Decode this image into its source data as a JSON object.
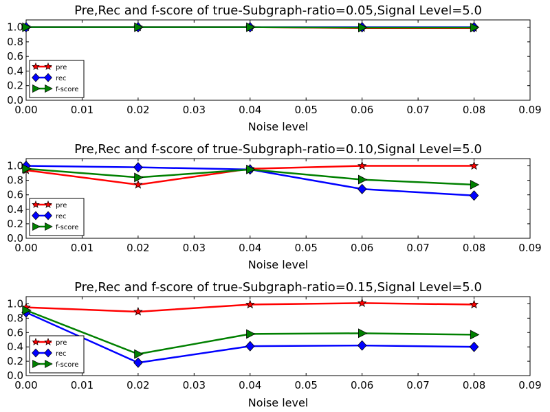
{
  "chart_data": [
    {
      "type": "line",
      "title": "Pre,Rec and f-score of true-Subgraph-ratio=0.05,Signal Level=5.0",
      "xlabel": "Noise level",
      "ylabel": "",
      "xlim": [
        0,
        0.09
      ],
      "ylim": [
        0,
        1.1
      ],
      "xticks": [
        "0.00",
        "0.01",
        "0.02",
        "0.03",
        "0.04",
        "0.05",
        "0.06",
        "0.07",
        "0.08",
        "0.09"
      ],
      "yticks": [
        "0.0",
        "0.2",
        "0.4",
        "0.6",
        "0.8",
        "1.0"
      ],
      "legend": "lower-left",
      "x": [
        0.0,
        0.02,
        0.04,
        0.06,
        0.08
      ],
      "series": [
        {
          "name": "pre",
          "color": "#ff0000",
          "marker": "star",
          "values": [
            1.0,
            1.0,
            1.0,
            0.99,
            0.99
          ]
        },
        {
          "name": "rec",
          "color": "#0000ff",
          "marker": "diamond",
          "values": [
            1.0,
            1.0,
            1.0,
            1.0,
            1.0
          ]
        },
        {
          "name": "f-score",
          "color": "#008000",
          "marker": "triangle-right",
          "values": [
            1.0,
            1.0,
            1.0,
            0.995,
            0.995
          ]
        }
      ]
    },
    {
      "type": "line",
      "title": "Pre,Rec and f-score of true-Subgraph-ratio=0.10,Signal Level=5.0",
      "xlabel": "Noise level",
      "ylabel": "",
      "xlim": [
        0,
        0.09
      ],
      "ylim": [
        0,
        1.1
      ],
      "xticks": [
        "0.00",
        "0.01",
        "0.02",
        "0.03",
        "0.04",
        "0.05",
        "0.06",
        "0.07",
        "0.08",
        "0.09"
      ],
      "yticks": [
        "0.0",
        "0.2",
        "0.4",
        "0.6",
        "0.8",
        "1.0"
      ],
      "legend": "lower-left",
      "x": [
        0.0,
        0.02,
        0.04,
        0.06,
        0.08
      ],
      "series": [
        {
          "name": "pre",
          "color": "#ff0000",
          "marker": "star",
          "values": [
            0.94,
            0.74,
            0.96,
            1.0,
            1.0
          ]
        },
        {
          "name": "rec",
          "color": "#0000ff",
          "marker": "diamond",
          "values": [
            1.0,
            0.98,
            0.95,
            0.68,
            0.59
          ]
        },
        {
          "name": "f-score",
          "color": "#008000",
          "marker": "triangle-right",
          "values": [
            0.96,
            0.84,
            0.95,
            0.81,
            0.74
          ]
        }
      ]
    },
    {
      "type": "line",
      "title": "Pre,Rec and f-score of true-Subgraph-ratio=0.15,Signal Level=5.0",
      "xlabel": "Noise level",
      "ylabel": "",
      "xlim": [
        0,
        0.09
      ],
      "ylim": [
        0,
        1.1
      ],
      "xticks": [
        "0.00",
        "0.01",
        "0.02",
        "0.03",
        "0.04",
        "0.05",
        "0.06",
        "0.07",
        "0.08",
        "0.09"
      ],
      "yticks": [
        "0.0",
        "0.2",
        "0.4",
        "0.6",
        "0.8",
        "1.0"
      ],
      "legend": "lower-left",
      "x": [
        0.0,
        0.02,
        0.04,
        0.06,
        0.08
      ],
      "series": [
        {
          "name": "pre",
          "color": "#ff0000",
          "marker": "star",
          "values": [
            0.95,
            0.89,
            0.99,
            1.01,
            0.99
          ]
        },
        {
          "name": "rec",
          "color": "#0000ff",
          "marker": "diamond",
          "values": [
            0.88,
            0.18,
            0.41,
            0.42,
            0.4
          ]
        },
        {
          "name": "f-score",
          "color": "#008000",
          "marker": "triangle-right",
          "values": [
            0.91,
            0.3,
            0.58,
            0.59,
            0.57
          ]
        }
      ]
    }
  ]
}
